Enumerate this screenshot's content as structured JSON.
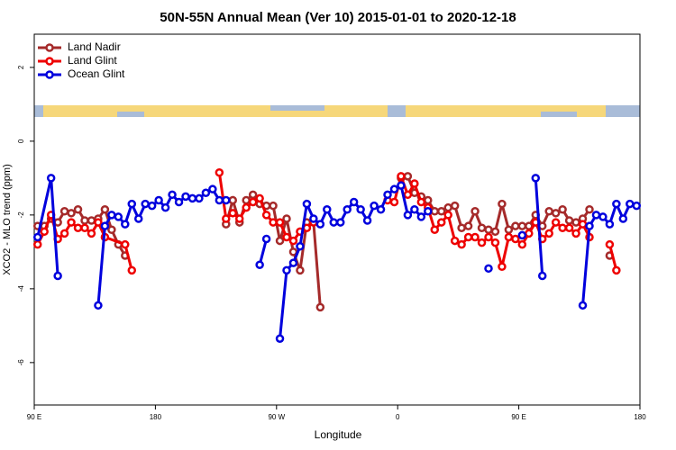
{
  "chart_data": {
    "type": "line",
    "title": "50N-55N Annual Mean (Ver 10)   2015-01-01 to 2020-12-18",
    "x_label": "Longitude",
    "y_label": "XCO2 - MLO trend (ppm)",
    "xlim": [
      90,
      540
    ],
    "ylim": [
      -7.15,
      2.9
    ],
    "xticks": [
      {
        "value": 90,
        "label": "90 E"
      },
      180,
      {
        "value": 270,
        "label": "90 W"
      },
      {
        "value": 360,
        "label": "0"
      },
      {
        "value": 450,
        "label": "90 E"
      },
      {
        "value": 540,
        "label": "180"
      }
    ],
    "yticks": [
      -6,
      -4,
      -2,
      0,
      2
    ],
    "legend": "top-left",
    "series": [
      {
        "name": "Land Nadir",
        "color": "#a52a2a",
        "x": [
          92.5,
          97.5,
          102.5,
          107.5,
          112.5,
          117.5,
          122.5,
          127.5,
          132.5,
          137.5,
          142.5,
          147.5,
          152.5,
          157.5,
          null,
          232.5,
          237.5,
          242.5,
          247.5,
          252.5,
          257.5,
          262.5,
          267.5,
          272.5,
          277.5,
          282.5,
          287.5,
          292.5,
          297.5,
          302.5,
          null,
          362.5,
          367.5,
          372.5,
          377.5,
          382.5,
          387.5,
          392.5,
          397.5,
          402.5,
          407.5,
          412.5,
          417.5,
          422.5,
          427.5,
          432.5,
          437.5,
          442.5,
          447.5,
          452.5,
          457.5,
          462.5,
          467.5,
          472.5,
          477.5,
          482.5,
          487.5,
          492.5,
          497.5,
          502.5,
          null,
          517.5
        ],
        "values": [
          -2.3,
          -2.3,
          -2.1,
          -2.2,
          -1.9,
          -1.95,
          -1.85,
          -2.15,
          -2.15,
          -2.1,
          -1.85,
          -2.4,
          -2.8,
          -3.1,
          null,
          -2.25,
          -1.6,
          -2.2,
          -1.6,
          -1.45,
          -1.7,
          -1.75,
          -1.75,
          -2.7,
          -2.1,
          -3.0,
          -3.5,
          -2.2,
          -2.2,
          -4.5,
          null,
          -1.0,
          -0.95,
          -1.4,
          -1.5,
          -1.6,
          -1.9,
          -1.9,
          -1.8,
          -1.75,
          -2.35,
          -2.3,
          -1.9,
          -2.35,
          -2.4,
          -2.45,
          -1.7,
          -2.4,
          -2.3,
          -2.3,
          -2.3,
          -2.0,
          -2.3,
          -1.9,
          -1.95,
          -1.85,
          -2.15,
          -2.2,
          -2.1,
          -1.85,
          null,
          -3.1
        ]
      },
      {
        "name": "Land Glint",
        "color": "#ee0000",
        "x": [
          92.5,
          97.5,
          102.5,
          107.5,
          112.5,
          117.5,
          122.5,
          127.5,
          132.5,
          137.5,
          142.5,
          157.5,
          162.5,
          null,
          227.5,
          232.5,
          237.5,
          242.5,
          247.5,
          252.5,
          257.5,
          262.5,
          267.5,
          272.5,
          277.5,
          282.5,
          287.5,
          292.5,
          297.5,
          null,
          352.5,
          357.5,
          362.5,
          367.5,
          372.5,
          377.5,
          382.5,
          387.5,
          392.5,
          397.5,
          402.5,
          407.5,
          412.5,
          417.5,
          422.5,
          427.5,
          432.5,
          437.5,
          442.5,
          447.5,
          452.5,
          457.5,
          462.5,
          467.5,
          472.5,
          477.5,
          482.5,
          487.5,
          492.5,
          497.5,
          502.5,
          null,
          517.5,
          522.5
        ],
        "values": [
          -2.8,
          -2.45,
          -2.0,
          -2.65,
          -2.5,
          -2.2,
          -2.35,
          -2.35,
          -2.5,
          -2.2,
          -2.6,
          -2.8,
          -3.5,
          null,
          -0.85,
          -2.1,
          -1.95,
          -2.1,
          -1.8,
          -1.65,
          -1.55,
          -2.0,
          -2.2,
          -2.2,
          -2.6,
          -2.7,
          -2.45,
          -2.35,
          -2.2,
          null,
          -1.6,
          -1.65,
          -0.95,
          -1.45,
          -1.15,
          -1.65,
          -1.8,
          -2.4,
          -2.2,
          -2.0,
          -2.7,
          -2.8,
          -2.6,
          -2.6,
          -2.75,
          -2.6,
          -2.75,
          -3.4,
          -2.6,
          -2.65,
          -2.8,
          -2.5,
          -2.2,
          -2.65,
          -2.5,
          -2.2,
          -2.35,
          -2.35,
          -2.5,
          -2.25,
          -2.6,
          null,
          -2.8,
          -3.5
        ]
      },
      {
        "name": "Ocean Glint",
        "color": "#0000dd",
        "x": [
          92.5,
          102.5,
          107.5,
          null,
          137.5,
          142.5,
          147.5,
          152.5,
          157.5,
          162.5,
          167.5,
          172.5,
          177.5,
          182.5,
          187.5,
          192.5,
          197.5,
          202.5,
          207.5,
          212.5,
          217.5,
          222.5,
          227.5,
          232.5,
          null,
          257.5,
          262.5,
          null,
          272.5,
          277.5,
          282.5,
          287.5,
          292.5,
          297.5,
          302.5,
          307.5,
          312.5,
          317.5,
          322.5,
          327.5,
          332.5,
          337.5,
          342.5,
          347.5,
          352.5,
          357.5,
          362.5,
          367.5,
          372.5,
          377.5,
          382.5,
          null,
          427.5,
          null,
          452.5,
          null,
          462.5,
          467.5,
          null,
          497.5,
          502.5,
          507.5,
          512.5,
          517.5,
          522.5,
          527.5,
          532.5,
          537.5
        ],
        "values": [
          -2.6,
          -1.0,
          -3.65,
          null,
          -4.45,
          -2.3,
          -2.0,
          -2.05,
          -2.25,
          -1.7,
          -2.1,
          -1.7,
          -1.75,
          -1.6,
          -1.8,
          -1.45,
          -1.65,
          -1.5,
          -1.55,
          -1.55,
          -1.4,
          -1.3,
          -1.6,
          -1.6,
          null,
          -3.35,
          -2.65,
          null,
          -5.35,
          -3.5,
          -3.3,
          -2.85,
          -1.7,
          -2.1,
          -2.25,
          -1.85,
          -2.2,
          -2.2,
          -1.85,
          -1.65,
          -1.85,
          -2.15,
          -1.75,
          -1.85,
          -1.45,
          -1.3,
          -1.2,
          -2.0,
          -1.85,
          -2.05,
          -1.9,
          null,
          -3.45,
          null,
          -2.55,
          null,
          -1.0,
          -3.65,
          null,
          -4.45,
          -2.3,
          -2.0,
          -2.05,
          -2.25,
          -1.7,
          -2.1,
          -1.7,
          -1.75
        ]
      }
    ]
  }
}
